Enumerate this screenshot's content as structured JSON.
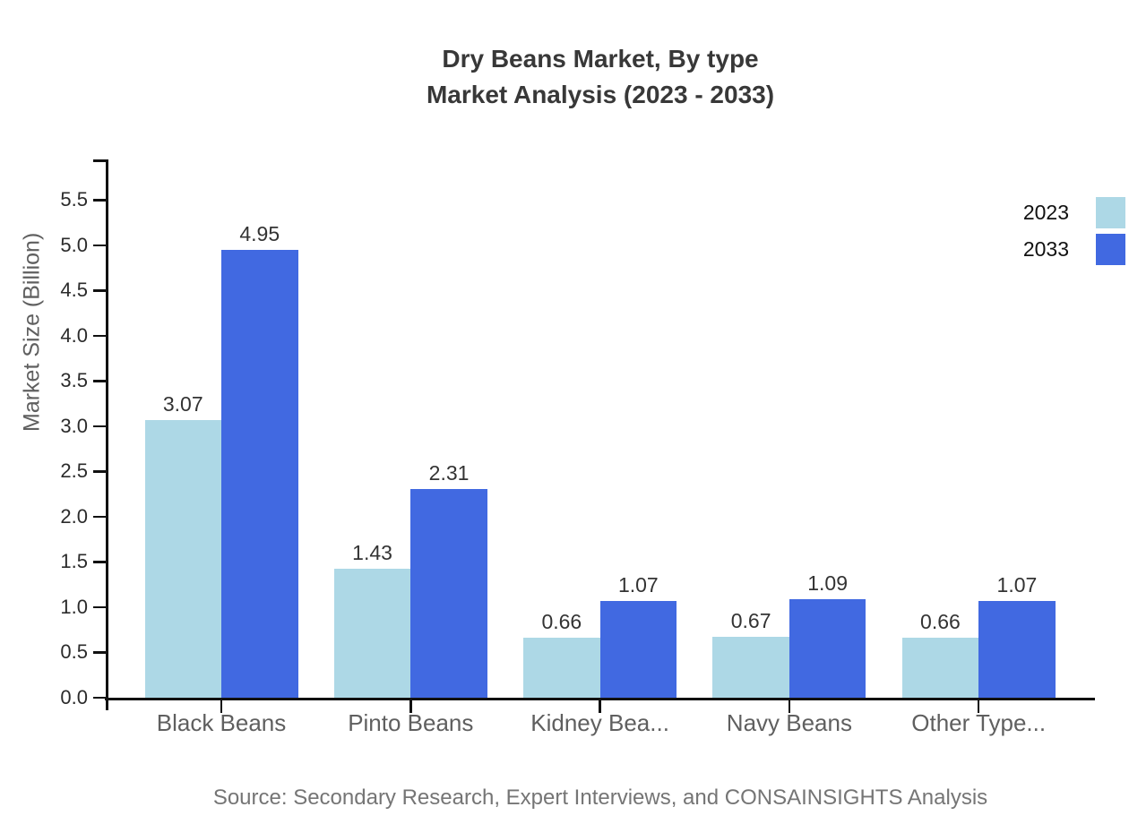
{
  "title": {
    "line1": "Dry Beans Market, By type",
    "line2": "Market Analysis (2023 - 2033)"
  },
  "legend": {
    "items": [
      {
        "label": "2023",
        "color": "#ADD8E6"
      },
      {
        "label": "2033",
        "color": "#4169E1"
      }
    ]
  },
  "source": "Source: Secondary Research, Expert Interviews, and CONSAINSIGHTS Analysis",
  "colors": {
    "axis": "#111111",
    "bar_2023": "#ADD8E6",
    "bar_2033": "#4169E1",
    "title_text": "#383838",
    "tick_text": "#2b2b2b",
    "category_text": "#5f5f5f",
    "value_text": "#333333",
    "source_text": "#757575"
  },
  "chart_data": {
    "type": "bar",
    "title": "Dry Beans Market, By type Market Analysis (2023 - 2033)",
    "categories": [
      "Black Beans",
      "Pinto Beans",
      "Kidney Bea...",
      "Navy Beans",
      "Other Type..."
    ],
    "series": [
      {
        "name": "2023",
        "color": "#ADD8E6",
        "values": [
          3.07,
          1.43,
          0.66,
          0.67,
          0.66
        ]
      },
      {
        "name": "2033",
        "color": "#4169E1",
        "values": [
          4.95,
          2.31,
          1.07,
          1.09,
          1.07
        ]
      }
    ],
    "xlabel": "",
    "ylabel": "Market Size (Billion)",
    "ylim": [
      0,
      5.97
    ],
    "ytick_labels": [
      "0.0",
      "0.5",
      "1.0",
      "1.5",
      "2.0",
      "2.5",
      "3.0",
      "3.5",
      "4.0",
      "4.5",
      "5.0",
      "5.5"
    ],
    "grid": false,
    "legend_position": "top-right",
    "bar_value_labels": true,
    "value_label_decimals": 2
  }
}
